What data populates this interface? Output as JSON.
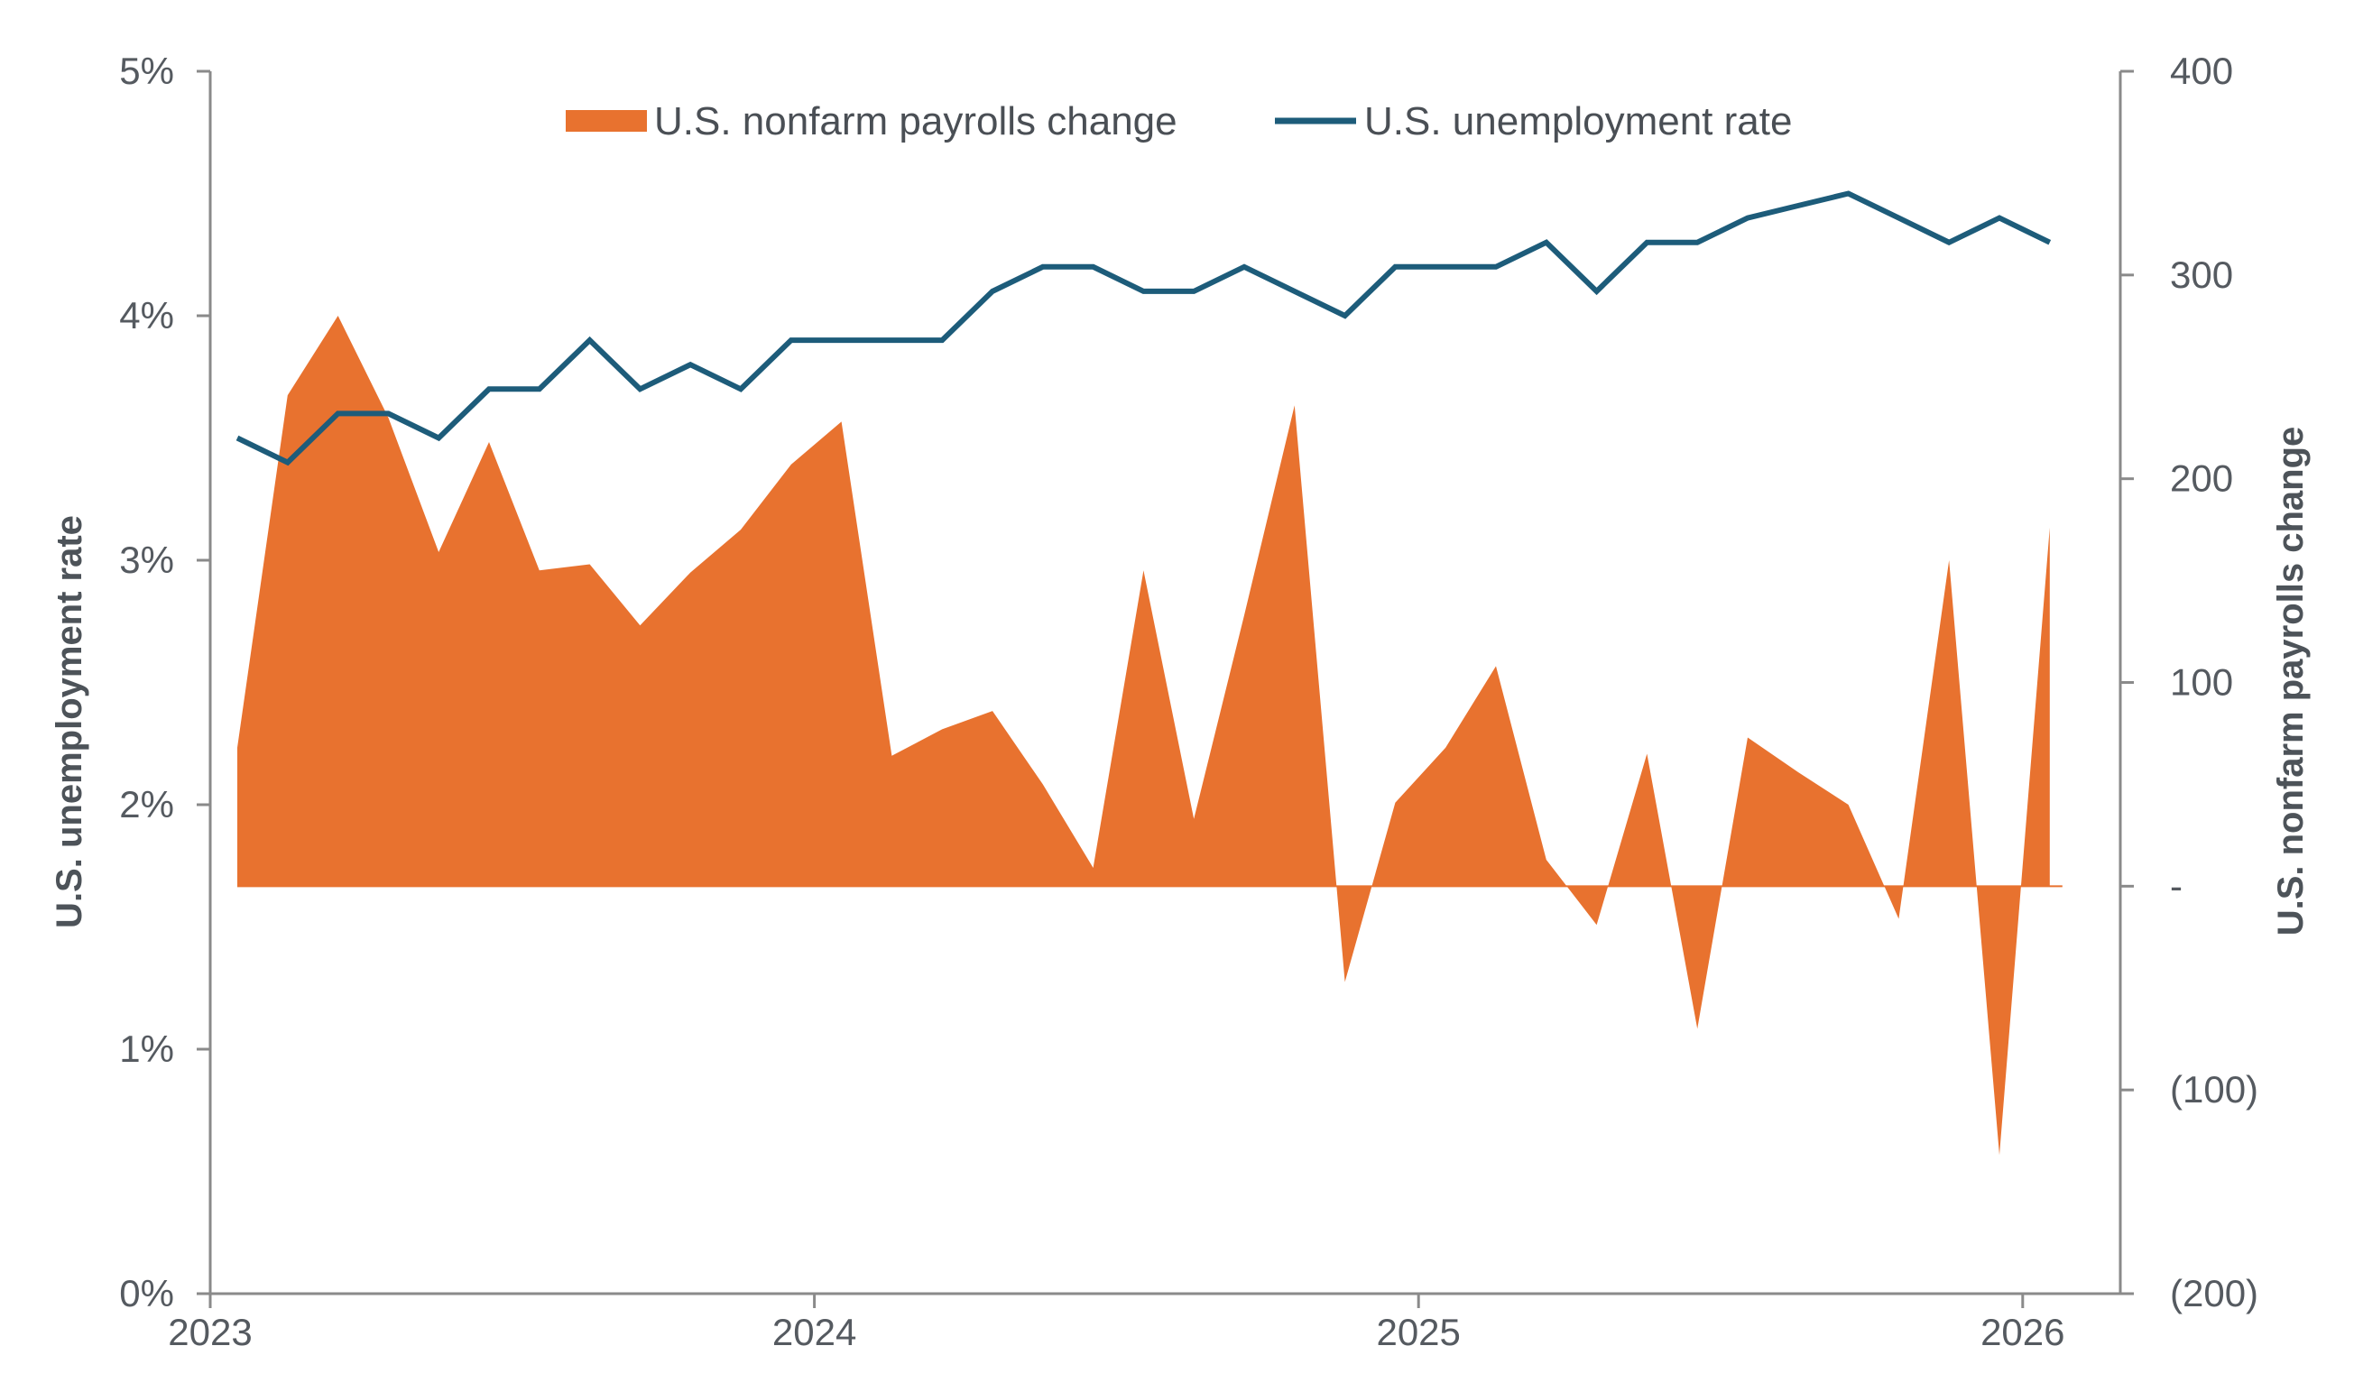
{
  "chart_data": {
    "type": "area",
    "title": "",
    "legend": {
      "placement": "top-center"
    },
    "colors": {
      "payrolls": "#e8722f",
      "unemployment": "#1d5c7a",
      "axis": "#8a8a8a",
      "text": "#555a60"
    },
    "x_start": "2023-01",
    "x_ticks": [
      "2023",
      "2024",
      "2025",
      "2026"
    ],
    "y_left": {
      "label": "U.S. unemployment rate",
      "range": [
        0,
        5
      ],
      "tick_values": [
        0,
        1,
        2,
        3,
        4,
        5
      ],
      "tick_labels": [
        "0%",
        "1%",
        "2%",
        "3%",
        "4%",
        "5%"
      ]
    },
    "y_right": {
      "label": "U.S. nonfarm payrolls change",
      "range": [
        -200,
        400
      ],
      "tick_values": [
        400,
        300,
        200,
        100,
        0,
        -100,
        -200
      ],
      "tick_labels": [
        "400",
        "300",
        "200",
        "100",
        "-",
        "(100)",
        "(200)"
      ]
    },
    "series": [
      {
        "name": "U.S. nonfarm payrolls change",
        "type": "area",
        "axis": "right",
        "x": [
          "2023-01",
          "2023-02",
          "2023-03",
          "2023-04",
          "2023-05",
          "2023-06",
          "2023-07",
          "2023-08",
          "2023-09",
          "2023-10",
          "2023-11",
          "2023-12",
          "2024-01",
          "2024-02",
          "2024-03",
          "2024-04",
          "2024-05",
          "2024-06",
          "2024-07",
          "2024-08",
          "2024-09",
          "2024-10",
          "2024-11",
          "2024-12",
          "2025-01",
          "2025-02",
          "2025-03",
          "2025-04",
          "2025-05",
          "2025-06",
          "2025-07",
          "2025-08",
          "2025-09",
          "2025-10",
          "2025-11",
          "2025-12",
          "2026-01"
        ],
        "values": [
          68,
          241,
          280,
          230,
          164,
          218,
          155,
          158,
          128,
          154,
          175,
          207,
          228,
          64,
          77,
          86,
          50,
          9,
          155,
          33,
          133,
          236,
          -47,
          41,
          68,
          108,
          13,
          -19,
          65,
          -70,
          73,
          56,
          40,
          -16,
          160,
          -132,
          176
        ]
      },
      {
        "name": "U.S. unemployment rate",
        "type": "line",
        "axis": "left",
        "x": [
          "2023-01",
          "2023-02",
          "2023-03",
          "2023-04",
          "2023-05",
          "2023-06",
          "2023-07",
          "2023-08",
          "2023-09",
          "2023-10",
          "2023-11",
          "2023-12",
          "2024-01",
          "2024-02",
          "2024-03",
          "2024-04",
          "2024-05",
          "2024-06",
          "2024-07",
          "2024-08",
          "2024-09",
          "2024-10",
          "2024-11",
          "2024-12",
          "2025-01",
          "2025-02",
          "2025-03",
          "2025-04",
          "2025-05",
          "2025-06",
          "2025-07",
          "2025-08",
          "2025-09",
          "2025-10",
          "2025-11",
          "2025-12",
          "2026-01"
        ],
        "values": [
          3.5,
          3.4,
          3.6,
          3.6,
          3.5,
          3.7,
          3.7,
          3.9,
          3.7,
          3.8,
          3.7,
          3.9,
          3.9,
          3.9,
          3.9,
          4.1,
          4.2,
          4.2,
          4.1,
          4.1,
          4.2,
          4.1,
          4.0,
          4.2,
          4.2,
          4.2,
          4.3,
          4.1,
          4.3,
          4.3,
          4.4,
          4.45,
          4.5,
          4.4,
          4.3,
          4.4,
          4.3
        ]
      }
    ]
  }
}
